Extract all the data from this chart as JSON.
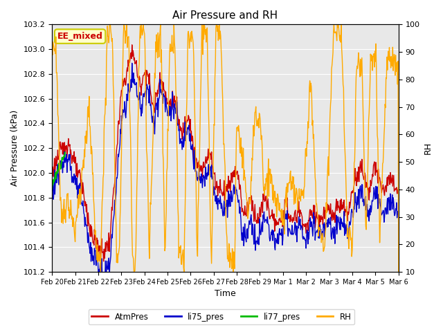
{
  "title": "Air Pressure and RH",
  "xlabel": "Time",
  "ylabel_left": "Air Pressure (kPa)",
  "ylabel_right": "RH",
  "ylim_left": [
    101.2,
    103.2
  ],
  "ylim_right": [
    10,
    100
  ],
  "yticks_left": [
    101.2,
    101.4,
    101.6,
    101.8,
    102.0,
    102.2,
    102.4,
    102.6,
    102.8,
    103.0,
    103.2
  ],
  "yticks_right": [
    10,
    20,
    30,
    40,
    50,
    60,
    70,
    80,
    90,
    100
  ],
  "xtick_labels": [
    "Feb 20",
    "Feb 21",
    "Feb 22",
    "Feb 23",
    "Feb 24",
    "Feb 25",
    "Feb 26",
    "Feb 27",
    "Feb 28",
    "Feb 29",
    "Mar 1",
    "Mar 2",
    "Mar 3",
    "Mar 4",
    "Mar 5",
    "Mar 6"
  ],
  "colors": {
    "AtmPres": "#cc0000",
    "li75_pres": "#0000cc",
    "li77_pres": "#00bb00",
    "RH": "#ffaa00"
  },
  "annotation_text": "EE_mixed",
  "annotation_color": "#cc0000",
  "annotation_bg": "#ffffcc",
  "annotation_border": "#cccc00",
  "plot_bg": "#e8e8e8",
  "fig_bg": "#ffffff",
  "grid_color": "#ffffff",
  "line_width": 1.0,
  "n_days": 15,
  "n_points": 720
}
